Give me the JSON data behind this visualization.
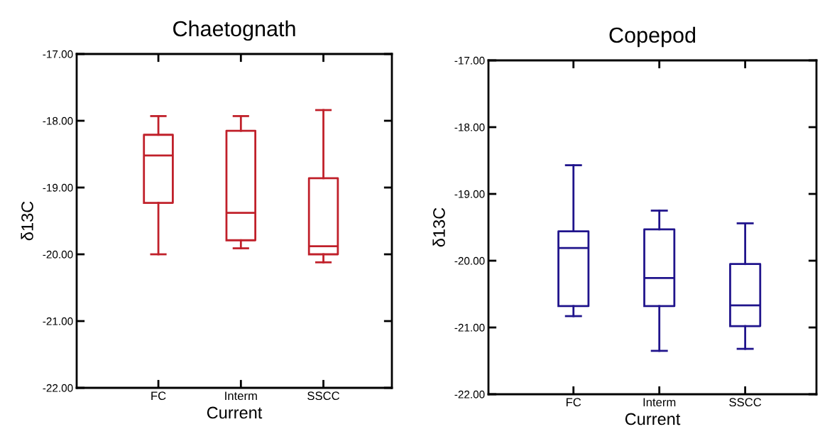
{
  "chart_data": [
    {
      "type": "box",
      "title": "Chaetognath",
      "xlabel": "Current",
      "ylabel": "δ13C",
      "categories": [
        "FC",
        "Interm",
        "SSCC"
      ],
      "ylim": [
        -22,
        -17
      ],
      "yticks": [
        {
          "value": -17,
          "label": "-17.00"
        },
        {
          "value": -18,
          "label": "-18.00"
        },
        {
          "value": -19,
          "label": "-19.00"
        },
        {
          "value": -20,
          "label": "-20.00"
        },
        {
          "value": -21,
          "label": "-21.00"
        },
        {
          "value": -22,
          "label": "-22.00"
        }
      ],
      "grid": false,
      "color": "#c0202a",
      "boxes": [
        {
          "low": -20.0,
          "q1": -19.23,
          "median": -18.52,
          "q3": -18.21,
          "high": -17.93
        },
        {
          "low": -19.91,
          "q1": -19.79,
          "median": -19.38,
          "q3": -18.15,
          "high": -17.93
        },
        {
          "low": -20.12,
          "q1": -20.0,
          "median": -19.88,
          "q3": -18.86,
          "high": -17.84
        }
      ]
    },
    {
      "type": "box",
      "title": "Copepod",
      "xlabel": "Current",
      "ylabel": "δ13C",
      "categories": [
        "FC",
        "Interm",
        "SSCC"
      ],
      "ylim": [
        -22,
        -17
      ],
      "yticks": [
        {
          "value": -17,
          "label": "-17.00"
        },
        {
          "value": -18,
          "label": "-18.00"
        },
        {
          "value": -19,
          "label": "-19.00"
        },
        {
          "value": -20,
          "label": "-20.00"
        },
        {
          "value": -21,
          "label": "-21.00"
        },
        {
          "value": -22,
          "label": "-22.00"
        }
      ],
      "grid": false,
      "color": "#20148c",
      "boxes": [
        {
          "low": -20.83,
          "q1": -20.68,
          "median": -19.81,
          "q3": -19.56,
          "high": -18.57
        },
        {
          "low": -21.35,
          "q1": -20.68,
          "median": -20.26,
          "q3": -19.53,
          "high": -19.25
        },
        {
          "low": -21.32,
          "q1": -20.98,
          "median": -20.67,
          "q3": -20.05,
          "high": -19.44
        }
      ]
    }
  ]
}
